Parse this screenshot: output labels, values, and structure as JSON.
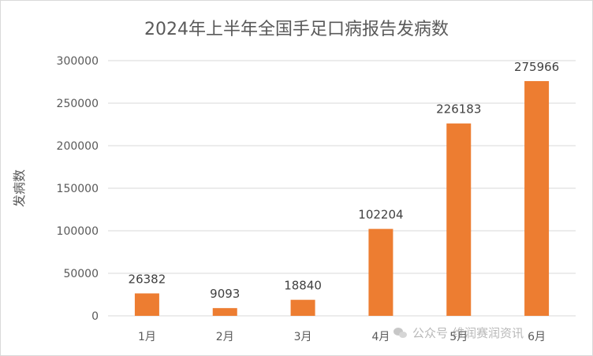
{
  "chart_data": {
    "type": "bar",
    "title": "2024年上半年全国手足口病报告发病数",
    "xlabel": "",
    "ylabel": "发病数",
    "categories": [
      "1月",
      "2月",
      "3月",
      "4月",
      "5月",
      "6月"
    ],
    "series": [
      {
        "values": [
          26382,
          9093,
          18840,
          102204,
          226183,
          275966
        ]
      }
    ],
    "ylim": [
      0,
      300000
    ],
    "yticks": [
      "0",
      "50000",
      "100000",
      "150000",
      "200000",
      "250000",
      "300000"
    ],
    "grid": true,
    "legend": "none",
    "bar_color": "#ED7D31",
    "grid_color": "#D9D9D9",
    "text_color": "#595959"
  },
  "watermark": {
    "left_text": "公众号",
    "right_text": "维润赛润资讯",
    "icon": "wechat-icon"
  }
}
